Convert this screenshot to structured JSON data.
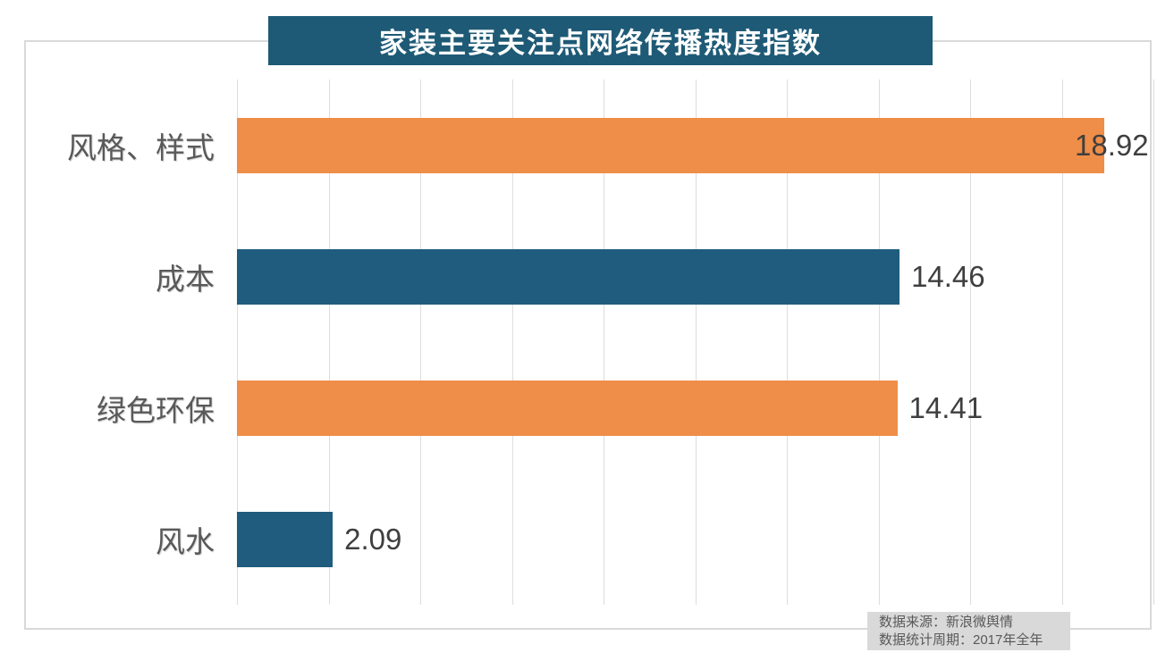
{
  "title": "家装主要关注点网络传播热度指数",
  "chart_data": {
    "type": "bar",
    "orientation": "horizontal",
    "title": "家装主要关注点网络传播热度指数",
    "categories": [
      "风格、样式",
      "成本",
      "绿色环保",
      "风水"
    ],
    "values": [
      18.92,
      14.46,
      14.41,
      2.09
    ],
    "value_labels": [
      "18.92",
      "14.46",
      "14.41",
      "2.09"
    ],
    "bar_colors": [
      "#EF8E49",
      "#1F5C7D",
      "#EF8E49",
      "#1F5C7D"
    ],
    "xlim": [
      0,
      20
    ],
    "gridline_interval": 2,
    "grid": true,
    "xlabel": "",
    "ylabel": "",
    "legend": "none",
    "annotations": [
      "数据来源：新浪微舆情",
      "数据统计周期：2017年全年"
    ]
  },
  "footer": {
    "source_line": "数据来源：新浪微舆情",
    "period_line": "数据统计周期：2017年全年"
  },
  "colors": {
    "title_bg": "#1E5A76",
    "title_text": "#FFFFFF",
    "orange": "#EF8E49",
    "teal": "#1F5C7D",
    "grid": "#DDDDDD",
    "border": "#D9D9D9",
    "category_text": "#595959",
    "value_text": "#3F3F3F",
    "footer_bg": "#D9D9D9",
    "footer_text": "#595959"
  }
}
